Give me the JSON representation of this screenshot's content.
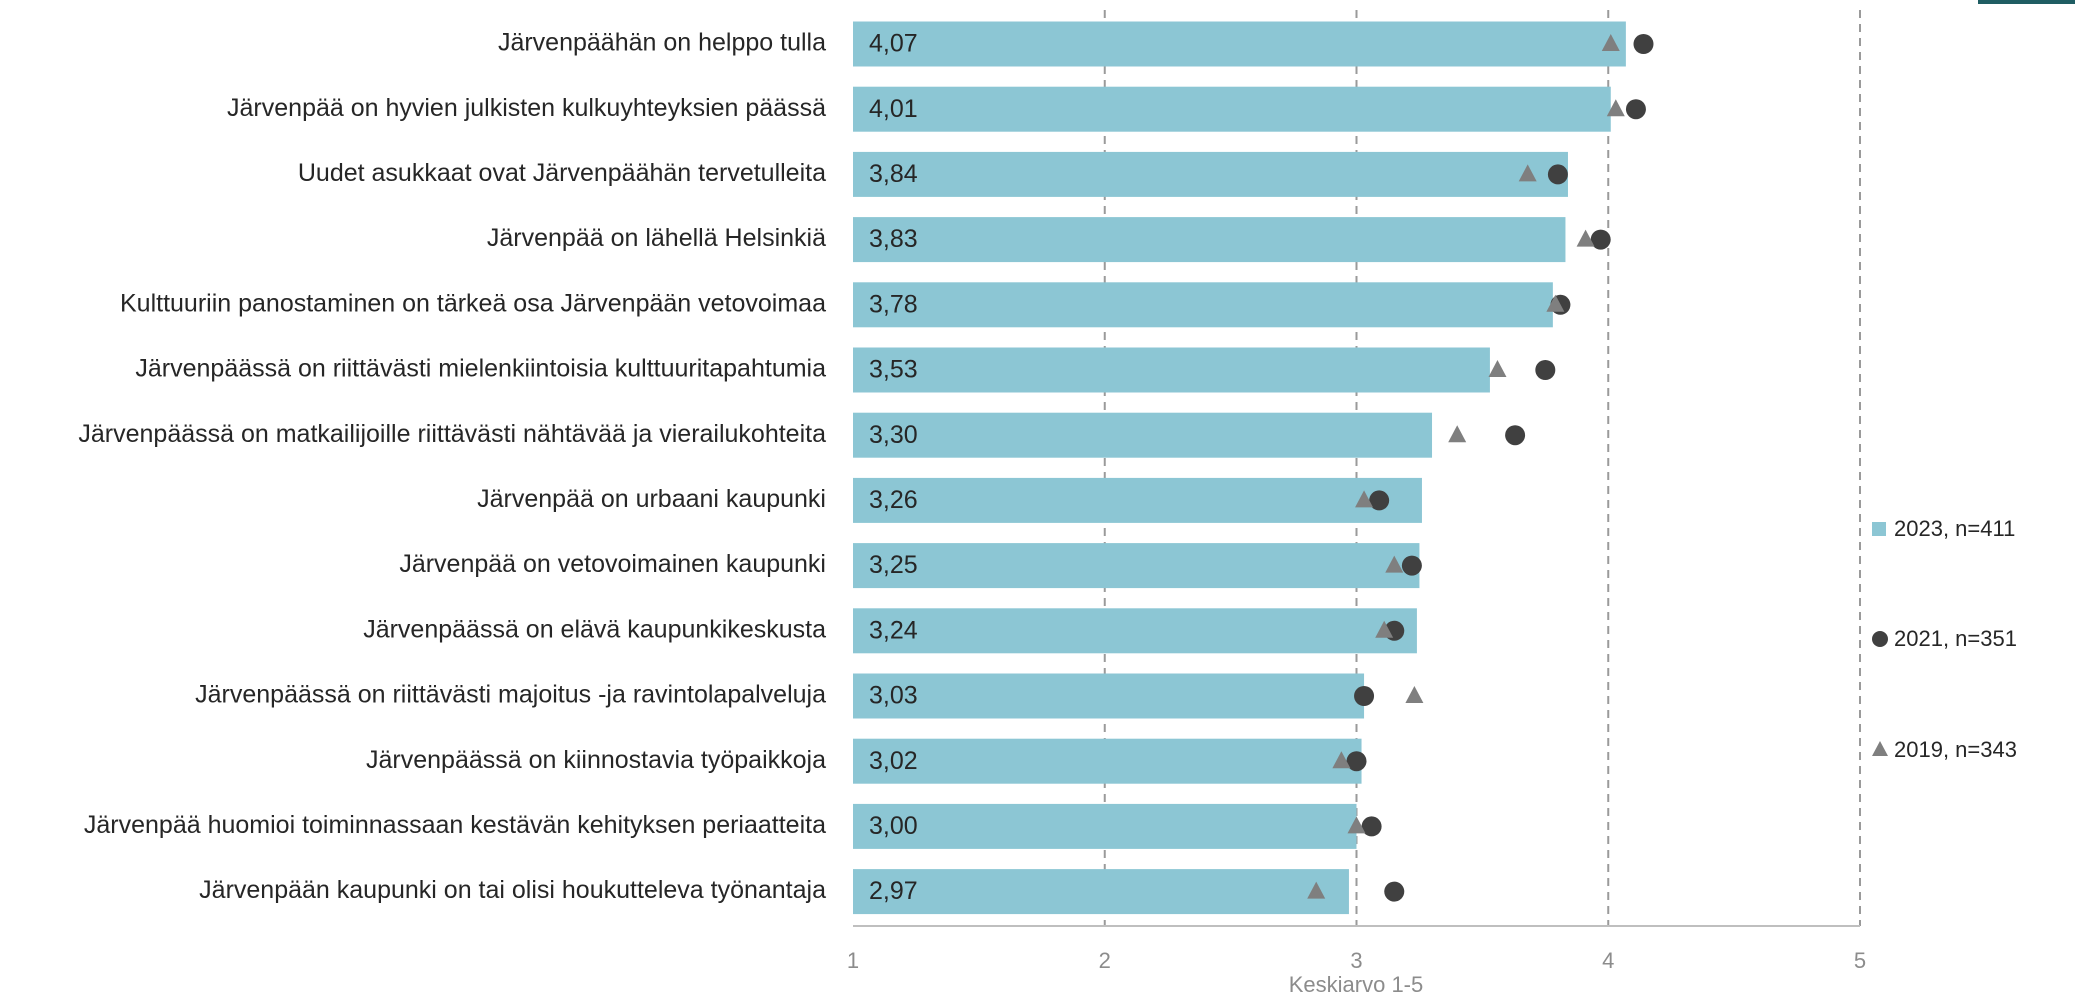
{
  "chart_data": {
    "type": "bar",
    "orientation": "horizontal",
    "categories": [
      "Järvenpäähän on helppo tulla",
      "Järvenpää on hyvien julkisten kulkuyhteyksien päässä",
      "Uudet asukkaat ovat Järvenpäähän tervetulleita",
      "Järvenpää on lähellä Helsinkiä",
      "Kulttuuriin panostaminen on tärkeä osa Järvenpään vetovoimaa",
      "Järvenpäässä on riittävästi mielenkiintoisia kulttuuritapahtumia",
      "Järvenpäässä on matkailijoille riittävästi nähtävää ja vierailukohteita",
      "Järvenpää on urbaani kaupunki",
      "Järvenpää on vetovoimainen kaupunki",
      "Järvenpäässä on elävä kaupunkikeskusta",
      "Järvenpäässä on riittävästi majoitus -ja ravintolapalveluja",
      "Järvenpäässä on kiinnostavia työpaikkoja",
      "Järvenpää huomioi toiminnassaan kestävän kehityksen periaatteita",
      "Järvenpään kaupunki on tai olisi houkutteleva työnantaja"
    ],
    "series": [
      {
        "name": "2023, n=411",
        "color": "#8cc6d4",
        "marker": "bar",
        "values": [
          4.07,
          4.01,
          3.84,
          3.83,
          3.78,
          3.53,
          3.3,
          3.26,
          3.25,
          3.24,
          3.03,
          3.02,
          3.0,
          2.97
        ],
        "value_labels": [
          "4,07",
          "4,01",
          "3,84",
          "3,83",
          "3,78",
          "3,53",
          "3,30",
          "3,26",
          "3,25",
          "3,24",
          "3,03",
          "3,02",
          "3,00",
          "2,97"
        ]
      },
      {
        "name": "2021, n=351",
        "color": "#404040",
        "marker": "circle",
        "values": [
          4.14,
          4.11,
          3.8,
          3.97,
          3.81,
          3.75,
          3.63,
          3.09,
          3.22,
          3.15,
          3.03,
          3.0,
          3.06,
          3.15
        ]
      },
      {
        "name": "2019, n=343",
        "color": "#7f7f7f",
        "marker": "triangle",
        "values": [
          4.01,
          4.03,
          3.68,
          3.91,
          3.79,
          3.56,
          3.4,
          3.03,
          3.15,
          3.11,
          3.23,
          2.94,
          3.0,
          2.84
        ]
      }
    ],
    "xlabel": "Keskiarvo 1-5",
    "xlim": [
      1,
      5
    ],
    "xticks": [
      1,
      2,
      3,
      4,
      5
    ],
    "grid": true
  }
}
